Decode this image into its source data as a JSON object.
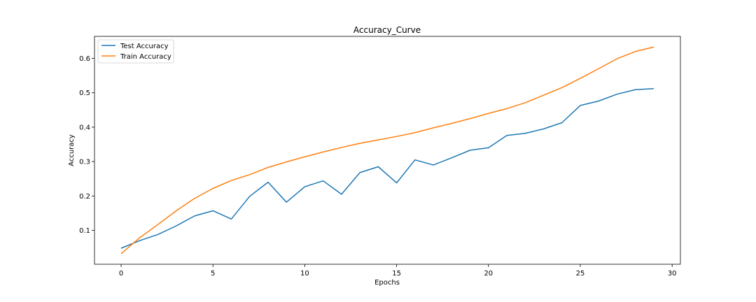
{
  "chart_data": {
    "type": "line",
    "title": "Accuracy_Curve",
    "xlabel": "Epochs",
    "ylabel": "Accuracy",
    "xlim": [
      -1.45,
      30.45
    ],
    "ylim": [
      0.0015,
      0.664
    ],
    "xticks": [
      0,
      5,
      10,
      15,
      20,
      25,
      30
    ],
    "yticks": [
      0.1,
      0.2,
      0.3,
      0.4,
      0.5,
      0.6
    ],
    "grid": false,
    "legend_position": "upper-left",
    "x": [
      0,
      1,
      2,
      3,
      4,
      5,
      6,
      7,
      8,
      9,
      10,
      11,
      12,
      13,
      14,
      15,
      16,
      17,
      18,
      19,
      20,
      21,
      22,
      23,
      24,
      25,
      26,
      27,
      28,
      29
    ],
    "series": [
      {
        "name": "Test Accuracy",
        "color": "#1f77b4",
        "values": [
          0.048,
          0.07,
          0.088,
          0.113,
          0.142,
          0.157,
          0.133,
          0.199,
          0.24,
          0.182,
          0.227,
          0.244,
          0.205,
          0.268,
          0.285,
          0.238,
          0.305,
          0.29,
          0.311,
          0.333,
          0.34,
          0.376,
          0.382,
          0.395,
          0.413,
          0.463,
          0.476,
          0.496,
          0.509,
          0.512
        ]
      },
      {
        "name": "Train Accuracy",
        "color": "#ff7f0e",
        "values": [
          0.032,
          0.078,
          0.117,
          0.157,
          0.193,
          0.222,
          0.245,
          0.262,
          0.283,
          0.299,
          0.314,
          0.328,
          0.341,
          0.353,
          0.363,
          0.373,
          0.384,
          0.398,
          0.411,
          0.425,
          0.44,
          0.454,
          0.471,
          0.493,
          0.515,
          0.542,
          0.57,
          0.599,
          0.62,
          0.633
        ]
      }
    ]
  }
}
